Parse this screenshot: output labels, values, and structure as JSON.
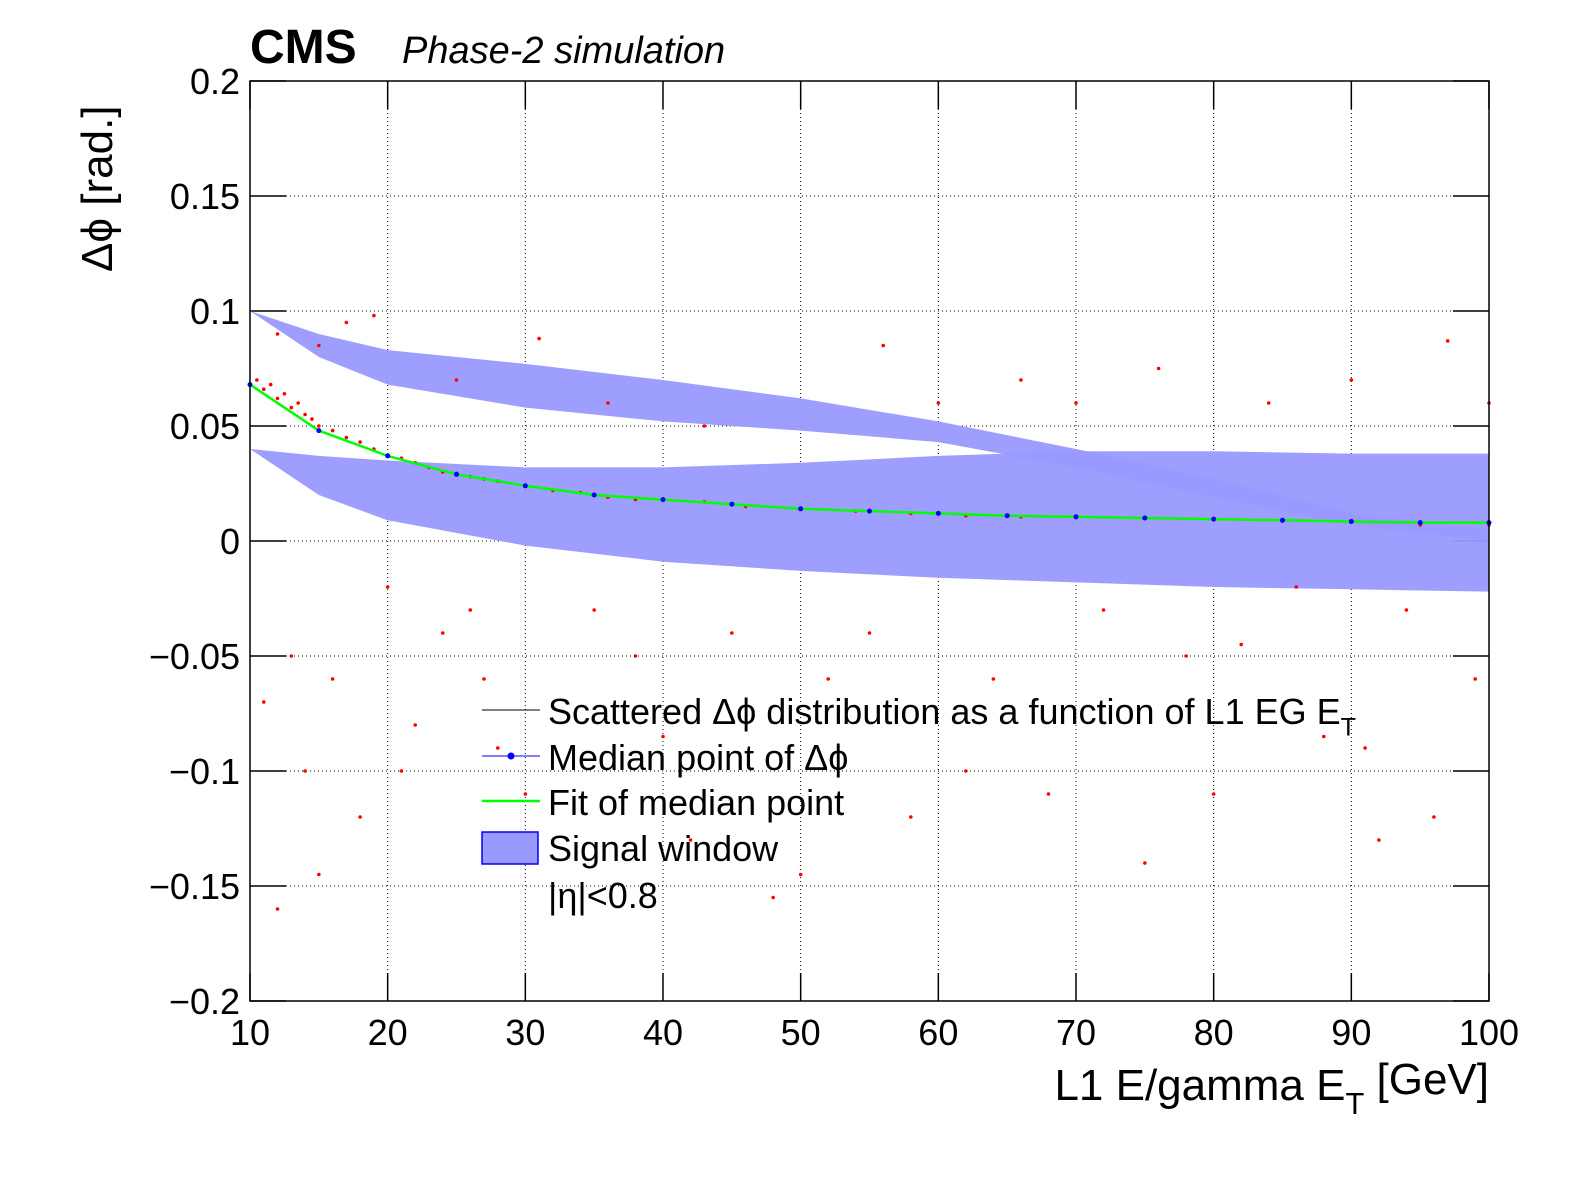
{
  "chart_data": {
    "type": "scatter",
    "title": "CMS",
    "subtitle": "Phase-2 simulation",
    "xlabel": "L1 E/gamma E_T [GeV]",
    "ylabel": "Δϕ [rad.]",
    "annotation": "|η|<0.8",
    "xlim": [
      10,
      100
    ],
    "ylim": [
      -0.2,
      0.2
    ],
    "xticks": [
      10,
      20,
      30,
      40,
      50,
      60,
      70,
      80,
      90,
      100
    ],
    "yticks": [
      {
        "value": -0.2,
        "label": "−0.2"
      },
      {
        "value": -0.15,
        "label": "−0.15"
      },
      {
        "value": -0.1,
        "label": "−0.1"
      },
      {
        "value": -0.05,
        "label": "−0.05"
      },
      0,
      0.05,
      0.1,
      0.15,
      0.2
    ],
    "grid": true,
    "series": [
      {
        "name": "Scattered Δϕ distribution as a function of L1 EG E_T",
        "type": "scatter",
        "color": "#ff0000",
        "x": [
          10.5,
          11,
          11.5,
          12,
          12.5,
          13,
          13.5,
          14,
          14.5,
          15,
          16,
          17,
          18,
          19,
          20,
          21,
          22,
          23,
          24,
          25,
          26,
          27,
          28,
          30,
          32,
          34,
          36,
          38,
          40,
          43,
          46,
          50,
          54,
          58,
          62,
          66,
          70,
          75,
          80,
          85,
          90,
          95,
          100,
          11,
          12,
          12,
          13,
          14,
          15,
          15,
          16,
          17,
          18,
          19,
          20,
          21,
          22,
          24,
          25,
          26,
          27,
          28,
          30,
          31,
          33,
          35,
          36,
          38,
          40,
          42,
          43,
          45,
          48,
          50,
          52,
          55,
          56,
          58,
          60,
          62,
          64,
          66,
          68,
          70,
          72,
          75,
          76,
          78,
          80,
          82,
          84,
          86,
          88,
          90,
          91,
          92,
          94,
          96,
          97,
          99,
          100
        ],
        "values": [
          0.07,
          0.066,
          0.068,
          0.062,
          0.064,
          0.058,
          0.06,
          0.055,
          0.053,
          0.05,
          0.048,
          0.045,
          0.043,
          0.04,
          0.037,
          0.036,
          0.034,
          0.032,
          0.03,
          0.029,
          0.028,
          0.027,
          0.026,
          0.024,
          0.022,
          0.021,
          0.019,
          0.018,
          0.018,
          0.017,
          0.015,
          0.014,
          0.013,
          0.012,
          0.011,
          0.0105,
          0.0105,
          0.01,
          0.0095,
          0.009,
          0.0085,
          0.007,
          0.007,
          -0.07,
          -0.16,
          0.09,
          -0.05,
          -0.1,
          -0.145,
          0.085,
          -0.06,
          0.095,
          -0.12,
          0.098,
          -0.02,
          -0.1,
          -0.08,
          -0.04,
          0.07,
          -0.03,
          -0.06,
          -0.09,
          -0.11,
          0.088,
          -0.07,
          -0.03,
          0.06,
          -0.05,
          -0.085,
          -0.13,
          0.05,
          -0.04,
          -0.155,
          -0.145,
          -0.06,
          -0.04,
          0.085,
          -0.12,
          0.06,
          -0.1,
          -0.06,
          0.07,
          -0.11,
          0.06,
          -0.03,
          -0.14,
          0.075,
          -0.05,
          -0.11,
          -0.045,
          0.06,
          -0.02,
          -0.085,
          0.07,
          -0.09,
          -0.13,
          -0.03,
          -0.12,
          0.087,
          -0.06,
          0.06
        ]
      },
      {
        "name": "Median point of Δϕ",
        "type": "points",
        "color": "#0000ff",
        "x": [
          10,
          15,
          20,
          25,
          30,
          35,
          40,
          45,
          50,
          55,
          60,
          65,
          70,
          75,
          80,
          85,
          90,
          95,
          100
        ],
        "values": [
          0.068,
          0.048,
          0.037,
          0.029,
          0.024,
          0.02,
          0.018,
          0.016,
          0.014,
          0.013,
          0.012,
          0.011,
          0.0105,
          0.01,
          0.0095,
          0.009,
          0.0085,
          0.008,
          0.008
        ]
      },
      {
        "name": "Fit of median point",
        "type": "line",
        "color": "#00ff00",
        "x": [
          10,
          15,
          20,
          25,
          30,
          35,
          40,
          45,
          50,
          55,
          60,
          65,
          70,
          75,
          80,
          85,
          90,
          95,
          100
        ],
        "values": [
          0.068,
          0.048,
          0.037,
          0.029,
          0.024,
          0.02,
          0.018,
          0.016,
          0.014,
          0.013,
          0.012,
          0.011,
          0.0105,
          0.01,
          0.0095,
          0.009,
          0.0085,
          0.008,
          0.008
        ]
      },
      {
        "name": "Signal window",
        "type": "band",
        "color": "#9999ff",
        "bands": [
          {
            "x": [
              10,
              15,
              20,
              30,
              40,
              50,
              60,
              70,
              80,
              90,
              100
            ],
            "low": [
              0.1,
              0.08,
              0.068,
              0.058,
              0.052,
              0.048,
              0.043,
              0.032,
              0.019,
              0.007,
              0.0
            ],
            "high": [
              0.1,
              0.09,
              0.083,
              0.077,
              0.07,
              0.062,
              0.052,
              0.04,
              0.027,
              0.012,
              0.005
            ]
          },
          {
            "x": [
              10,
              15,
              20,
              30,
              40,
              50,
              60,
              70,
              80,
              90,
              100
            ],
            "low": [
              0.04,
              0.02,
              0.009,
              -0.002,
              -0.009,
              -0.013,
              -0.016,
              -0.018,
              -0.02,
              -0.021,
              -0.022
            ],
            "high": [
              0.04,
              0.037,
              0.035,
              0.032,
              0.032,
              0.034,
              0.037,
              0.039,
              0.039,
              0.038,
              0.038
            ]
          }
        ]
      }
    ]
  }
}
